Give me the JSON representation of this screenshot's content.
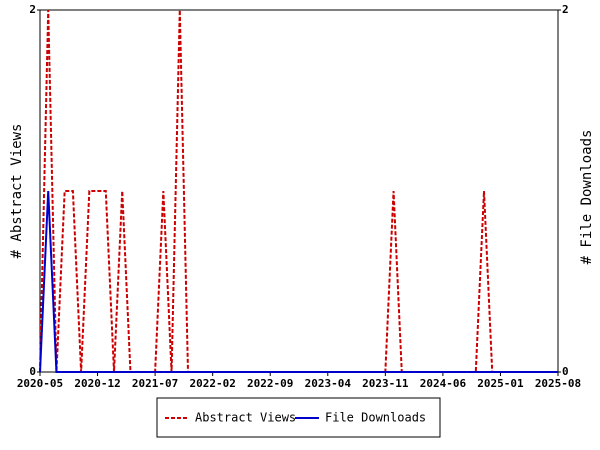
{
  "chart_data": {
    "type": "line",
    "x": [
      "2020-05",
      "2020-06",
      "2020-07",
      "2020-08",
      "2020-09",
      "2020-10",
      "2020-11",
      "2020-12",
      "2021-01",
      "2021-02",
      "2021-03",
      "2021-04",
      "2021-05",
      "2021-06",
      "2021-07",
      "2021-08",
      "2021-09",
      "2021-10",
      "2021-11",
      "2021-12",
      "2022-01",
      "2022-02",
      "2022-03",
      "2022-04",
      "2022-05",
      "2022-06",
      "2022-07",
      "2022-08",
      "2022-09",
      "2022-10",
      "2022-11",
      "2022-12",
      "2023-01",
      "2023-02",
      "2023-03",
      "2023-04",
      "2023-05",
      "2023-06",
      "2023-07",
      "2023-08",
      "2023-09",
      "2023-10",
      "2023-11",
      "2023-12",
      "2024-01",
      "2024-02",
      "2024-03",
      "2024-04",
      "2024-05",
      "2024-06",
      "2024-07",
      "2024-08",
      "2024-09",
      "2024-10",
      "2024-11",
      "2024-12",
      "2025-01",
      "2025-02",
      "2025-03",
      "2025-04",
      "2025-05",
      "2025-06",
      "2025-07",
      "2025-08"
    ],
    "series": [
      {
        "name": "Abstract Views",
        "color": "#cc0000",
        "dashed": true,
        "values": [
          0,
          2,
          0,
          1,
          1,
          0,
          1,
          1,
          1,
          0,
          1,
          0,
          0,
          0,
          0,
          1,
          0,
          2,
          0,
          0,
          0,
          0,
          0,
          0,
          0,
          0,
          0,
          0,
          0,
          0,
          0,
          0,
          0,
          0,
          0,
          0,
          0,
          0,
          0,
          0,
          0,
          0,
          0,
          1,
          0,
          0,
          0,
          0,
          0,
          0,
          0,
          0,
          0,
          0,
          1,
          0,
          0,
          0,
          0,
          0,
          0,
          0,
          0,
          0
        ]
      },
      {
        "name": "File Downloads",
        "color": "#0000cc",
        "dashed": false,
        "axis": "y2",
        "values": [
          0,
          1,
          0,
          0,
          0,
          0,
          0,
          0,
          0,
          0,
          0,
          0,
          0,
          0,
          0,
          0,
          0,
          0,
          0,
          0,
          0,
          0,
          0,
          0,
          0,
          0,
          0,
          0,
          0,
          0,
          0,
          0,
          0,
          0,
          0,
          0,
          0,
          0,
          0,
          0,
          0,
          0,
          0,
          0,
          0,
          0,
          0,
          0,
          0,
          0,
          0,
          0,
          0,
          0,
          0,
          0,
          0,
          0,
          0,
          0,
          0,
          0,
          0,
          0
        ]
      }
    ],
    "xticks": [
      "2020-05",
      "2020-12",
      "2021-07",
      "2022-02",
      "2022-09",
      "2023-04",
      "2023-11",
      "2024-06",
      "2025-01",
      "2025-08"
    ],
    "ylim": [
      0,
      2
    ],
    "yticks": [
      0,
      2
    ],
    "y2lim": [
      0,
      2
    ],
    "y2ticks": [
      0,
      2
    ],
    "ylabel": "# Abstract Views",
    "y2label": "# File Downloads",
    "legend": "bottom"
  }
}
